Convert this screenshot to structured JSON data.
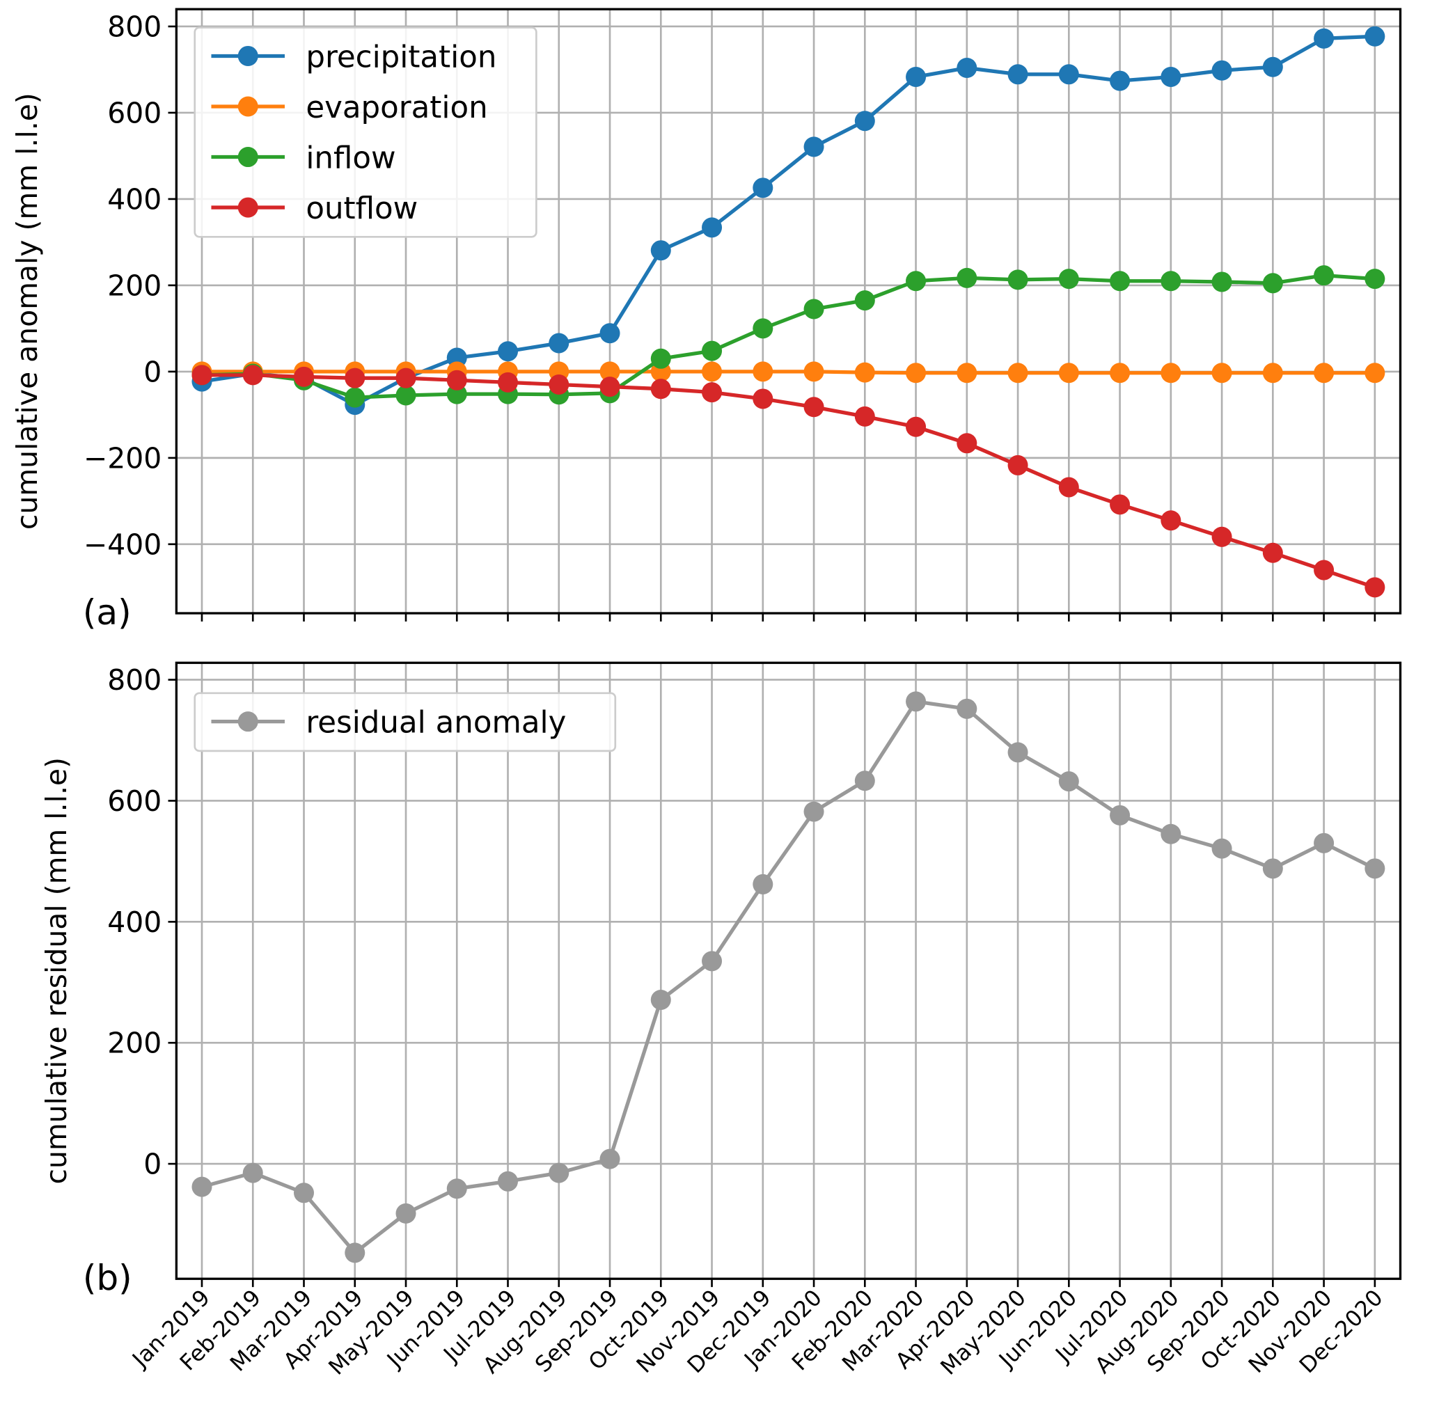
{
  "chart_data": [
    {
      "type": "line",
      "y_label": "cumulative anomaly (mm l.l.e)",
      "annotation": "(a)",
      "ylim": [
        -560,
        840
      ],
      "yticks": [
        {
          "value": -400,
          "label": "−400"
        },
        {
          "value": -200,
          "label": "−200"
        },
        0,
        200,
        400,
        600,
        800
      ],
      "grid": true,
      "legend": "upper left",
      "series": [
        {
          "name": "precipitation",
          "color": "#1f77b4",
          "values": [
            -23,
            -5,
            -15,
            -77,
            -15,
            32,
            47,
            66,
            89,
            281,
            334,
            426,
            521,
            581,
            683,
            704,
            689,
            689,
            674,
            683,
            698,
            706,
            772,
            777
          ]
        },
        {
          "name": "evaporation",
          "color": "#ff7f0e",
          "values": [
            0,
            0,
            0,
            0,
            0,
            0,
            0,
            0,
            0,
            0,
            0,
            0,
            0,
            -2,
            -3,
            -3,
            -3,
            -3,
            -3,
            -3,
            -3,
            -3,
            -3,
            -3
          ]
        },
        {
          "name": "inflow",
          "color": "#2ca02c",
          "values": [
            -8,
            -5,
            -20,
            -60,
            -55,
            -52,
            -52,
            -53,
            -50,
            30,
            48,
            100,
            145,
            165,
            210,
            217,
            213,
            215,
            210,
            210,
            208,
            205,
            223,
            215
          ]
        },
        {
          "name": "outflow",
          "color": "#d62728",
          "values": [
            -8,
            -8,
            -12,
            -15,
            -15,
            -20,
            -25,
            -30,
            -35,
            -40,
            -48,
            -63,
            -82,
            -104,
            -128,
            -166,
            -217,
            -268,
            -308,
            -345,
            -383,
            -420,
            -460,
            -500
          ]
        }
      ]
    },
    {
      "type": "line",
      "y_label": "cumulative residual (mm l.l.e)",
      "annotation": "(b)",
      "categories": [
        "Jan-2019",
        "Feb-2019",
        "Mar-2019",
        "Apr-2019",
        "May-2019",
        "Jun-2019",
        "Jul-2019",
        "Aug-2019",
        "Sep-2019",
        "Oct-2019",
        "Nov-2019",
        "Dec-2019",
        "Jan-2020",
        "Feb-2020",
        "Mar-2020",
        "Apr-2020",
        "May-2020",
        "Jun-2020",
        "Jul-2020",
        "Aug-2020",
        "Sep-2020",
        "Oct-2020",
        "Nov-2020",
        "Dec-2020"
      ],
      "ylim": [
        -190,
        828
      ],
      "yticks": [
        0,
        200,
        400,
        600,
        800
      ],
      "grid": true,
      "legend": "upper left",
      "series": [
        {
          "name": "residual anomaly",
          "color": "#999999",
          "values": [
            -38,
            -15,
            -48,
            -147,
            -82,
            -41,
            -29,
            -15,
            8,
            271,
            335,
            462,
            582,
            633,
            764,
            752,
            680,
            632,
            576,
            545,
            521,
            488,
            530,
            488
          ]
        }
      ]
    }
  ]
}
